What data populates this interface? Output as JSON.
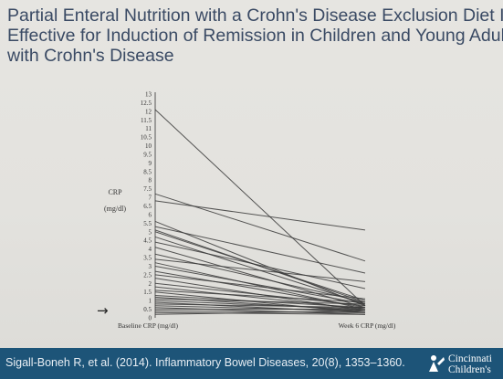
{
  "slide": {
    "title_lines": [
      "Partial Enteral Nutrition with a Crohn's Disease Exclusion Diet Is",
      "Effective for Induction of Remission in Children and Young Adults",
      "with Crohn's Disease"
    ],
    "citation": "Sigall-Boneh R, et al. (2014). Inflammatory Bowel Diseases, 20(8), 1353–1360.",
    "logo": {
      "line1": "Cincinnati",
      "line2": "Children's",
      "icon": "cincinnati-childrens-logo-icon"
    },
    "arrow": {
      "glyph": "→",
      "icon": "right-arrow-icon"
    },
    "colors": {
      "title": "#3a4a64",
      "footer": "#1d5478",
      "lines": "#3a3a3a"
    }
  },
  "chart_data": {
    "type": "line",
    "title": "",
    "ylabel_lines": [
      "CRP",
      "(mg/dl)"
    ],
    "categories": [
      "Baseline CRP (mg/dl)",
      "Week 6 CRP (mg/dl)"
    ],
    "ylim": [
      0,
      13
    ],
    "yticks": [
      "0",
      "0.5",
      "1",
      "1.5",
      "2",
      "2.5",
      "3",
      "3.5",
      "4",
      "4.5",
      "5",
      "5.5",
      "6",
      "6.5",
      "7",
      "7.5",
      "8",
      "8.5",
      "9",
      "9.5",
      "10",
      "10.5",
      "11",
      "11.5",
      "12",
      "12.5",
      "13"
    ],
    "series": [
      {
        "values": [
          12.1,
          0.7
        ]
      },
      {
        "values": [
          7.2,
          3.3
        ]
      },
      {
        "values": [
          6.8,
          5.1
        ]
      },
      {
        "values": [
          5.6,
          0.7
        ]
      },
      {
        "values": [
          5.3,
          2.6
        ]
      },
      {
        "values": [
          5.1,
          0.9
        ]
      },
      {
        "values": [
          5.0,
          1.0
        ]
      },
      {
        "values": [
          4.7,
          0.8
        ]
      },
      {
        "values": [
          4.4,
          1.7
        ]
      },
      {
        "values": [
          4.1,
          0.6
        ]
      },
      {
        "values": [
          3.7,
          0.9
        ]
      },
      {
        "values": [
          3.4,
          2.1
        ]
      },
      {
        "values": [
          3.2,
          0.5
        ]
      },
      {
        "values": [
          3.0,
          0.8
        ]
      },
      {
        "values": [
          2.7,
          0.6
        ]
      },
      {
        "values": [
          2.5,
          1.1
        ]
      },
      {
        "values": [
          2.3,
          0.4
        ]
      },
      {
        "values": [
          2.0,
          0.7
        ]
      },
      {
        "values": [
          1.8,
          0.5
        ]
      },
      {
        "values": [
          1.6,
          0.9
        ]
      },
      {
        "values": [
          1.5,
          0.3
        ]
      },
      {
        "values": [
          1.3,
          0.6
        ]
      },
      {
        "values": [
          1.2,
          0.4
        ]
      },
      {
        "values": [
          1.1,
          0.8
        ]
      },
      {
        "values": [
          1.0,
          0.5
        ]
      },
      {
        "values": [
          0.9,
          0.3
        ]
      },
      {
        "values": [
          0.8,
          0.6
        ]
      },
      {
        "values": [
          0.7,
          0.4
        ]
      },
      {
        "values": [
          0.6,
          0.2
        ]
      },
      {
        "values": [
          0.5,
          0.5
        ]
      },
      {
        "values": [
          0.4,
          0.3
        ]
      },
      {
        "values": [
          0.3,
          0.2
        ]
      },
      {
        "values": [
          0.2,
          0.4
        ]
      }
    ],
    "grid": false,
    "legend": "none"
  }
}
